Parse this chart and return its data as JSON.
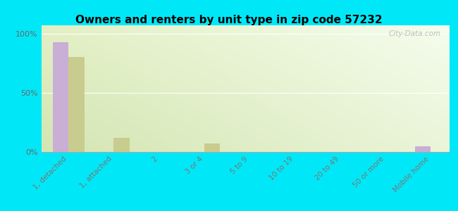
{
  "title": "Owners and renters by unit type in zip code 57232",
  "categories": [
    "1, detached",
    "1, attached",
    "2",
    "3 or 4",
    "5 to 9",
    "10 to 19",
    "20 to 49",
    "50 or more",
    "Mobile home"
  ],
  "owner_values": [
    93,
    0,
    0,
    0,
    0,
    0,
    0,
    0,
    5
  ],
  "renter_values": [
    80,
    12,
    0,
    7,
    0,
    0,
    0,
    0,
    0
  ],
  "owner_color": "#c9aed6",
  "renter_color": "#c8cc8e",
  "outer_bg": "#00e8f8",
  "chart_bg_topleft": "#e8f0c8",
  "chart_bg_topright": "#f0f8e0",
  "chart_bg_bottom": "#dde8bb",
  "ylabel_ticks": [
    "0%",
    "50%",
    "100%"
  ],
  "ytick_vals": [
    0,
    50,
    100
  ],
  "ylim": [
    0,
    107
  ],
  "bar_width": 0.35,
  "watermark": "City-Data.com",
  "title_fontsize": 11,
  "tick_fontsize": 7.5,
  "legend_fontsize": 8.5
}
